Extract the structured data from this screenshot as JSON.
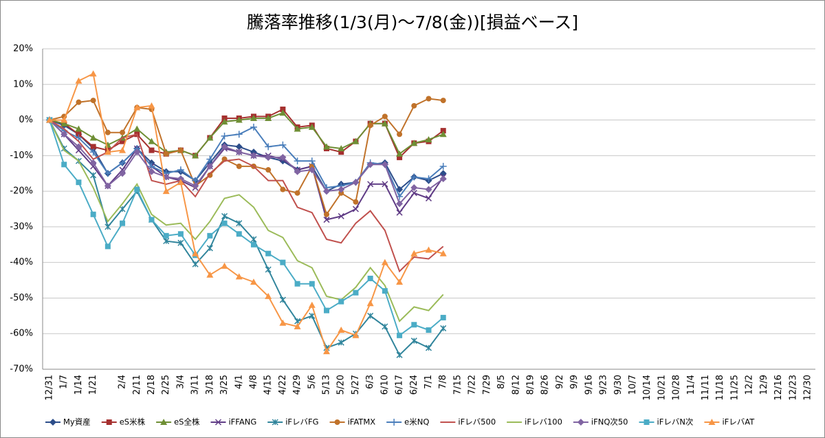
{
  "chart_data": {
    "type": "line",
    "title": "騰落率推移(1/3(月)～7/8(金))[損益ベース]",
    "categories": [
      "12/31",
      "1/7",
      "1/14",
      "1/21",
      null,
      "2/4",
      "2/11",
      "2/18",
      "2/25",
      "3/4",
      "3/11",
      "3/18",
      "3/25",
      "4/1",
      "4/8",
      "4/15",
      "4/22",
      "4/29",
      "5/6",
      "5/13",
      "5/20",
      "5/27",
      "6/3",
      "6/10",
      "6/17",
      "6/24",
      "7/1",
      "7/8",
      "7/15",
      "7/22",
      "7/29",
      "8/5",
      "8/12",
      "8/19",
      "8/26",
      "9/2",
      "9/9",
      "9/16",
      "9/23",
      "9/30",
      "10/7",
      "10/14",
      "10/21",
      "10/28",
      "11/4",
      "11/11",
      "11/18",
      "11/25",
      "12/2",
      "12/9",
      "12/16",
      "12/23",
      "12/30"
    ],
    "ylim": [
      -70,
      20
    ],
    "yticks": [
      {
        "value": -70,
        "label": "-70%"
      },
      {
        "value": -60,
        "label": "-60%"
      },
      {
        "value": -50,
        "label": "-50%"
      },
      {
        "value": -40,
        "label": "-40%"
      },
      {
        "value": -30,
        "label": "-30%"
      },
      {
        "value": -20,
        "label": "-20%"
      },
      {
        "value": -10,
        "label": "-10%"
      },
      {
        "value": 0,
        "label": "0%"
      },
      {
        "value": 10,
        "label": "10%"
      },
      {
        "value": 20,
        "label": "20%"
      }
    ],
    "grid": true,
    "legend": "bottom",
    "series": [
      {
        "name": "My資産",
        "color": "#2c4d8a",
        "marker": "diamond",
        "values": [
          0,
          -1.5,
          -4,
          -8,
          -15,
          -12,
          -8,
          -12,
          -14.5,
          -14.5,
          -17,
          -12,
          -7,
          -7.5,
          -9,
          -10.5,
          -11.5,
          -14,
          -13,
          -20,
          -18,
          -17.5,
          -12.5,
          -12,
          -19.5,
          -16,
          -17,
          -15,
          null,
          null,
          null,
          null,
          null,
          null,
          null,
          null,
          null,
          null,
          null,
          null,
          null,
          null,
          null,
          null,
          null,
          null,
          null,
          null,
          null,
          null,
          null,
          null,
          null
        ]
      },
      {
        "name": "eS米株",
        "color": "#a5302f",
        "marker": "square",
        "values": [
          0,
          -1,
          -4,
          -7.5,
          -8.5,
          -6,
          -4,
          -8.5,
          -9.5,
          -8.5,
          -10,
          -5,
          0.5,
          0.5,
          1,
          1,
          3,
          -2,
          -1.5,
          -8,
          -9,
          -6,
          -1,
          -1,
          -10.5,
          -6.5,
          -6,
          -3,
          null,
          null,
          null,
          null,
          null,
          null,
          null,
          null,
          null,
          null,
          null,
          null,
          null,
          null,
          null,
          null,
          null,
          null,
          null,
          null,
          null,
          null,
          null,
          null,
          null
        ]
      },
      {
        "name": "eS全株",
        "color": "#6f8f35",
        "marker": "triangle",
        "values": [
          0,
          -1,
          -2.5,
          -5,
          -7,
          -5,
          -2.5,
          -6,
          -9,
          -8.5,
          -10,
          -5,
          -0.5,
          0,
          0.5,
          0.5,
          2,
          -2.5,
          -2,
          -7.5,
          -8,
          -6,
          -1,
          -1,
          -9.5,
          -6.5,
          -5.5,
          -4,
          null,
          null,
          null,
          null,
          null,
          null,
          null,
          null,
          null,
          null,
          null,
          null,
          null,
          null,
          null,
          null,
          null,
          null,
          null,
          null,
          null,
          null,
          null,
          null,
          null
        ]
      },
      {
        "name": "iFFANG",
        "color": "#5f3b85",
        "marker": "x",
        "values": [
          0,
          -4,
          -8.5,
          -13,
          -18.5,
          -14,
          -8,
          -13,
          -16,
          -17,
          -19,
          -13,
          -8,
          -9,
          -10,
          -10,
          -11,
          -14,
          -13,
          -28,
          -27,
          -25,
          -18,
          -18,
          -26,
          -20.5,
          -22,
          -16,
          null,
          null,
          null,
          null,
          null,
          null,
          null,
          null,
          null,
          null,
          null,
          null,
          null,
          null,
          null,
          null,
          null,
          null,
          null,
          null,
          null,
          null,
          null,
          null,
          null
        ]
      },
      {
        "name": "iFレバFG",
        "color": "#31859c",
        "marker": "star",
        "values": [
          0,
          -8,
          -11.5,
          -15.5,
          -30,
          -25,
          -20,
          -28,
          -34,
          -34.5,
          -40.5,
          -36,
          -27,
          -29,
          -33.5,
          -42,
          -50.5,
          -56.5,
          -55,
          -64,
          -62.5,
          -60,
          -55,
          -58,
          -66,
          -62,
          -64,
          -58.5,
          null,
          null,
          null,
          null,
          null,
          null,
          null,
          null,
          null,
          null,
          null,
          null,
          null,
          null,
          null,
          null,
          null,
          null,
          null,
          null,
          null,
          null,
          null,
          null,
          null
        ]
      },
      {
        "name": "iFATMX",
        "color": "#c0722a",
        "marker": "circle",
        "values": [
          0,
          1,
          5,
          5.5,
          -3.5,
          -3.5,
          3.5,
          3,
          -9.5,
          -8.5,
          -18.5,
          -15.5,
          -11,
          -13,
          -13,
          -14,
          -19.5,
          -20.5,
          -13,
          -26.5,
          -20.5,
          -23,
          -1.5,
          1,
          -4,
          4,
          6,
          5.5,
          null,
          null,
          null,
          null,
          null,
          null,
          null,
          null,
          null,
          null,
          null,
          null,
          null,
          null,
          null,
          null,
          null,
          null,
          null,
          null,
          null,
          null,
          null,
          null,
          null
        ]
      },
      {
        "name": "e米NQ",
        "color": "#4a7ebb",
        "marker": "plus",
        "values": [
          0,
          -3,
          -5,
          -9,
          -15,
          -12,
          -8,
          -13,
          -15,
          -14,
          -17,
          -11,
          -4.5,
          -4,
          -2,
          -7.5,
          -7,
          -11.5,
          -11.5,
          -19,
          -18.5,
          -17.5,
          -12,
          -12.5,
          -21.5,
          -16,
          -16.5,
          -13,
          null,
          null,
          null,
          null,
          null,
          null,
          null,
          null,
          null,
          null,
          null,
          null,
          null,
          null,
          null,
          null,
          null,
          null,
          null,
          null,
          null,
          null,
          null,
          null,
          null
        ]
      },
      {
        "name": "iFレバ500",
        "color": "#c0504d",
        "marker": "none",
        "values": [
          0,
          -2.5,
          -6,
          -11,
          -9,
          -5,
          -4,
          -17,
          -18,
          -17,
          -21.5,
          -15,
          -11.5,
          -11,
          -13,
          -17,
          -17,
          -24.5,
          -26,
          -33.5,
          -34.5,
          -29,
          -25.5,
          -31,
          -42.5,
          -38.5,
          -39,
          -35.5,
          null,
          null,
          null,
          null,
          null,
          null,
          null,
          null,
          null,
          null,
          null,
          null,
          null,
          null,
          null,
          null,
          null,
          null,
          null,
          null,
          null,
          null,
          null,
          null,
          null
        ]
      },
      {
        "name": "iFレバ100",
        "color": "#9bbb59",
        "marker": "none",
        "values": [
          0,
          -8.5,
          -11.5,
          -19,
          -28.5,
          -23.5,
          -18,
          -26.5,
          -29.5,
          -29,
          -33.5,
          -28.5,
          -22,
          -21,
          -24.5,
          -31,
          -33,
          -39.5,
          -41.5,
          -49.5,
          -50.5,
          -47,
          -41.5,
          -46.5,
          -56.5,
          -52.5,
          -53.5,
          -49,
          null,
          null,
          null,
          null,
          null,
          null,
          null,
          null,
          null,
          null,
          null,
          null,
          null,
          null,
          null,
          null,
          null,
          null,
          null,
          null,
          null,
          null,
          null,
          null,
          null
        ]
      },
      {
        "name": "iFNQ次50",
        "color": "#8064a2",
        "marker": "diamond",
        "values": [
          0,
          -4,
          -7.5,
          -12,
          -18.5,
          -15,
          -9,
          -14.5,
          -16,
          -16.5,
          -18.5,
          -13,
          -7.5,
          -9,
          -10,
          -10.5,
          -10.5,
          -14.5,
          -14,
          -20,
          -19.5,
          -17.5,
          -12.5,
          -12.5,
          -23.5,
          -19,
          -19.5,
          -16.5,
          null,
          null,
          null,
          null,
          null,
          null,
          null,
          null,
          null,
          null,
          null,
          null,
          null,
          null,
          null,
          null,
          null,
          null,
          null,
          null,
          null,
          null,
          null,
          null,
          null
        ]
      },
      {
        "name": "iFレバN次",
        "color": "#4bacc6",
        "marker": "square",
        "values": [
          0,
          -12.5,
          -17.5,
          -26.5,
          -35.5,
          -29,
          -19.5,
          -28,
          -32.5,
          -32,
          -38,
          -32.5,
          -29,
          -32,
          -35,
          -37.5,
          -40,
          -46,
          -46,
          -53.5,
          -51,
          -48.5,
          -44.5,
          -48,
          -60.5,
          -57.5,
          -59,
          -55.5,
          null,
          null,
          null,
          null,
          null,
          null,
          null,
          null,
          null,
          null,
          null,
          null,
          null,
          null,
          null,
          null,
          null,
          null,
          null,
          null,
          null,
          null,
          null,
          null,
          null
        ]
      },
      {
        "name": "iFレバAT",
        "color": "#f79646",
        "marker": "triangle",
        "values": [
          0,
          0,
          11,
          13,
          -9,
          -8.5,
          3.5,
          4,
          -20,
          -17.5,
          -37.5,
          -43.5,
          -41,
          -44,
          -45.5,
          -49.5,
          -57,
          -58,
          -52,
          -65,
          -59,
          -60.5,
          -51.5,
          -40,
          -45.5,
          -37.5,
          -36.5,
          -37.5,
          null,
          null,
          null,
          null,
          null,
          null,
          null,
          null,
          null,
          null,
          null,
          null,
          null,
          null,
          null,
          null,
          null,
          null,
          null,
          null,
          null,
          null,
          null,
          null,
          null
        ]
      }
    ]
  }
}
